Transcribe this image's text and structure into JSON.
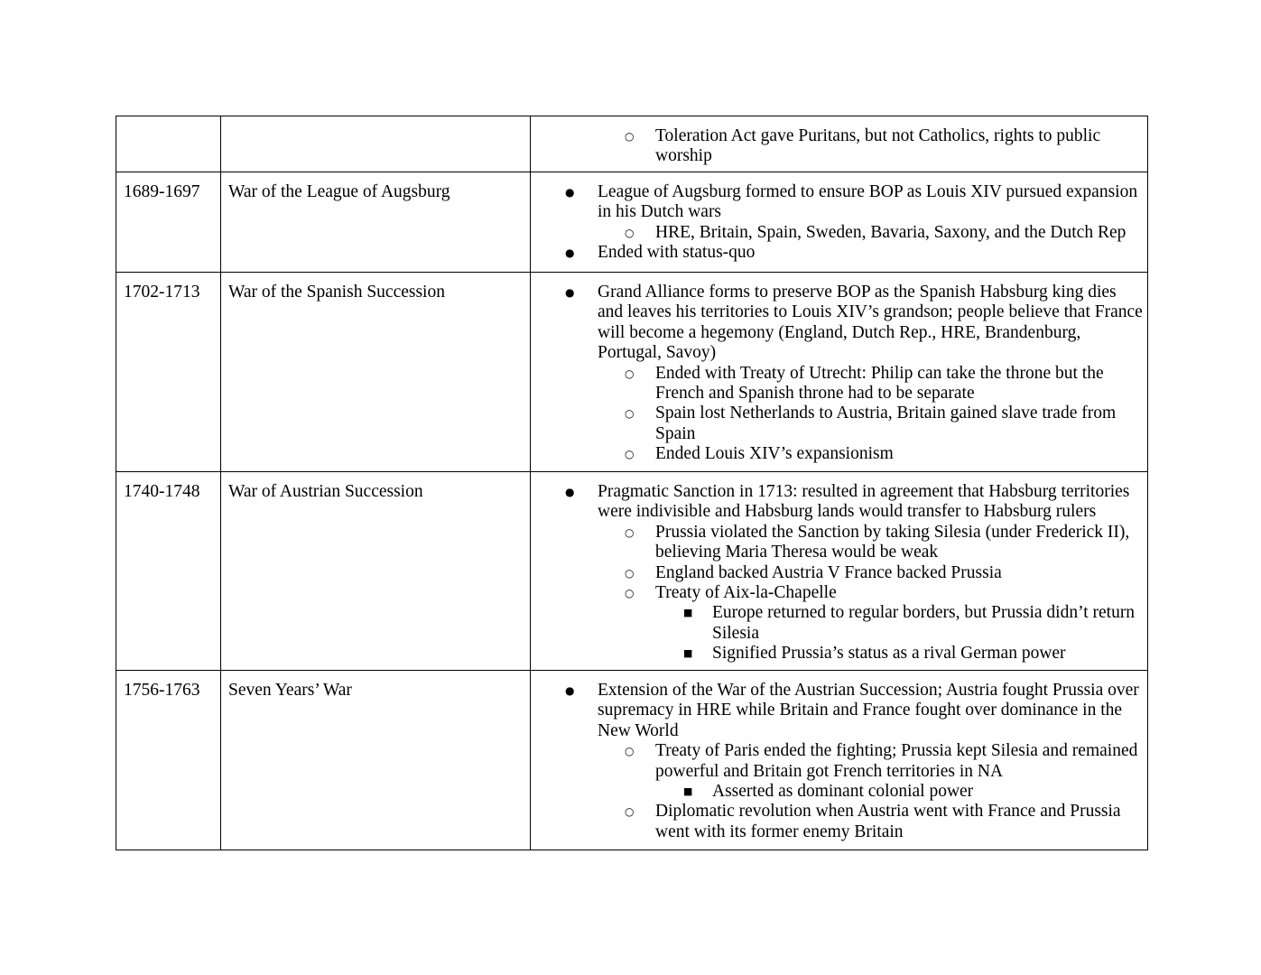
{
  "page": {
    "background_color": "#ffffff",
    "text_color": "#000000",
    "border_color": "#000000"
  },
  "bullet_markers": {
    "level1": "●",
    "level2": "○",
    "level3": "■"
  },
  "table": {
    "rows": [
      {
        "date": "",
        "war": "",
        "bullets": [
          {
            "level": 2,
            "text": "Toleration Act gave Puritans, but not Catholics, rights to public\nworship"
          }
        ]
      },
      {
        "date": "1689-1697",
        "war": "War of the League of Augsburg",
        "bullets": [
          {
            "level": 1,
            "text": "League of Augsburg formed to ensure BOP as Louis XIV pursued expansion\nin his Dutch wars"
          },
          {
            "level": 2,
            "text": "HRE, Britain, Spain, Sweden, Bavaria, Saxony, and the Dutch Rep"
          },
          {
            "level": 1,
            "text": "Ended with status-quo"
          }
        ]
      },
      {
        "date": "1702-1713",
        "war": "War of the Spanish Succession",
        "bullets": [
          {
            "level": 1,
            "text": "Grand Alliance forms to preserve BOP as the Spanish Habsburg king dies\nand leaves his territories to Louis XIV’s grandson; people believe that France\nwill become a hegemony (England, Dutch Rep., HRE, Brandenburg,\nPortugal, Savoy)"
          },
          {
            "level": 2,
            "text": "Ended with Treaty of Utrecht: Philip can take the throne but the\nFrench and Spanish throne had to be separate"
          },
          {
            "level": 2,
            "text": "Spain lost Netherlands to Austria, Britain gained slave trade from\nSpain"
          },
          {
            "level": 2,
            "text": "Ended Louis XIV’s expansionism"
          }
        ]
      },
      {
        "date": "1740-1748",
        "war": "War of Austrian Succession",
        "bullets": [
          {
            "level": 1,
            "text": "Pragmatic Sanction in 1713: resulted in agreement that Habsburg territories\nwere indivisible and Habsburg lands would transfer to Habsburg rulers"
          },
          {
            "level": 2,
            "text": "Prussia violated the Sanction by taking Silesia (under Frederick II),\nbelieving Maria Theresa would be weak"
          },
          {
            "level": 2,
            "text": "England backed Austria V France backed Prussia"
          },
          {
            "level": 2,
            "text": "Treaty of Aix-la-Chapelle"
          },
          {
            "level": 3,
            "text": "Europe returned to regular borders, but Prussia didn’t return\nSilesia"
          },
          {
            "level": 3,
            "text": "Signified Prussia’s status as a rival German power"
          }
        ]
      },
      {
        "date": "1756-1763",
        "war": "Seven Years’ War",
        "bullets": [
          {
            "level": 1,
            "text": "Extension of the War of the Austrian Succession; Austria fought Prussia over\nsupremacy in HRE while Britain and France fought over dominance in the\nNew World"
          },
          {
            "level": 2,
            "text": "Treaty of Paris ended the fighting; Prussia kept Silesia and remained\npowerful and Britain got French territories in NA"
          },
          {
            "level": 3,
            "text": "Asserted as dominant colonial power"
          },
          {
            "level": 2,
            "text": "Diplomatic revolution when Austria went with France and Prussia\nwent with its former enemy Britain"
          }
        ]
      }
    ]
  }
}
